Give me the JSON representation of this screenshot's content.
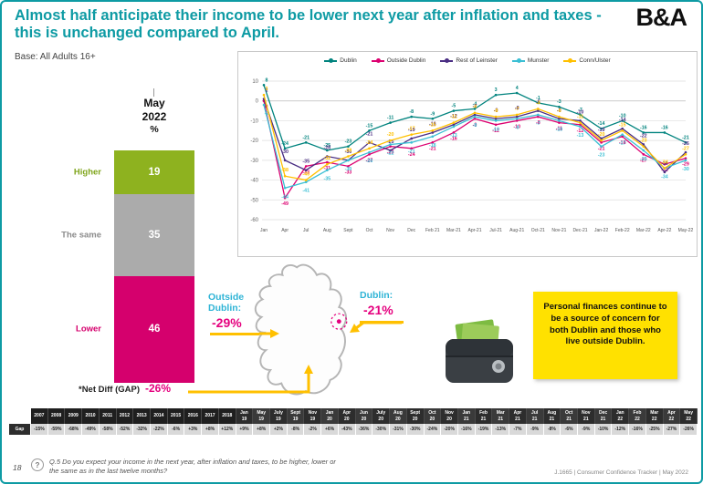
{
  "slide": {
    "title": "Almost half anticipate their income to be lower next year after inflation and taxes - this is unchanged compared to April.",
    "logo": "B&A",
    "base_note": "Base: All Adults 16+",
    "page_number": "18",
    "question": "Q.5  Do you expect your income in the next year, after inflation and taxes, to be higher, lower or the same as in the last twelve months?",
    "source": "J.1665 | Consumer Confidence Tracker | May 2022"
  },
  "colors": {
    "accent_teal": "#0E9BA4",
    "highlight_yellow": "#FFC000",
    "pink": "#E5007E",
    "cyan_label": "#2FB4D6",
    "note_yellow": "#FFE100"
  },
  "bar_panel": {
    "period_line1": "May",
    "period_line2": "2022",
    "period_line3": "%",
    "segments": [
      {
        "label": "Higher",
        "value": 19,
        "color": "#8EB21F",
        "text_color": "#7FA51B"
      },
      {
        "label": "The same",
        "value": 35,
        "color": "#ABABAB",
        "text_color": "#8C8C8C"
      },
      {
        "label": "Lower",
        "value": 46,
        "color": "#D5006D",
        "text_color": "#D5006D"
      }
    ],
    "net_diff_label": "*Net Diff (GAP)",
    "net_diff_value": "-26%"
  },
  "chart_data": {
    "type": "line",
    "title": "",
    "xlabel": "",
    "ylabel": "",
    "ylim": [
      -60,
      10
    ],
    "yticks": [
      10,
      0,
      -10,
      -20,
      -30,
      -40,
      -50,
      -60
    ],
    "grid": true,
    "legend_position": "top",
    "categories": [
      "Jan",
      "Apr",
      "Jul",
      "Aug",
      "Sept",
      "Oct",
      "Nov",
      "Dec",
      "Feb 21",
      "Mar-21",
      "Apr-21",
      "Jul-21",
      "Aug-21",
      "Oct-21",
      "Nov-21",
      "Dec-21",
      "Jan-22",
      "Feb-22",
      "Mar-22",
      "Apr-22",
      "May-22"
    ],
    "series": [
      {
        "name": "Dublin",
        "color": "#00837E",
        "values": [
          8,
          -24,
          -21,
          -25,
          -23,
          -15,
          -11,
          -8,
          -9,
          -5,
          -4,
          3,
          4,
          -1,
          -3,
          -7,
          -14,
          -10,
          -16,
          -16,
          -21
        ]
      },
      {
        "name": "Outside Dublin",
        "color": "#DC0070",
        "values": [
          0,
          -49,
          -33,
          -31,
          -33,
          -27,
          -23,
          -24,
          -21,
          -16,
          -9,
          -12,
          -10,
          -8,
          -11,
          -12,
          -21,
          -18,
          -27,
          -32,
          -29
        ]
      },
      {
        "name": "Rest of Leinster",
        "color": "#4A2E83",
        "values": [
          1,
          -30,
          -35,
          -28,
          -30,
          -21,
          -25,
          -19,
          -16,
          -12,
          -7,
          -9,
          -8,
          -5,
          -9,
          -10,
          -19,
          -14,
          -22,
          -36,
          -26
        ]
      },
      {
        "name": "Munster",
        "color": "#3BBFD4",
        "values": [
          -2,
          -44,
          -41,
          -35,
          -30,
          -26,
          -22,
          -21,
          -18,
          -13,
          -8,
          -10,
          -9,
          -7,
          -10,
          -13,
          -23,
          -17,
          -25,
          -34,
          -30
        ]
      },
      {
        "name": "Conn/Ulster",
        "color": "#FFC000",
        "values": [
          3,
          -38,
          -40,
          -32,
          -28,
          -24,
          -20,
          -17,
          -15,
          -11,
          -6,
          -8,
          -7,
          -4,
          -8,
          -11,
          -20,
          -15,
          -23,
          -34,
          -27
        ]
      }
    ]
  },
  "map_panel": {
    "outside_line1": "Outside",
    "outside_line2": "Dublin:",
    "outside_value": "-29%",
    "dublin_label": "Dublin:",
    "dublin_value": "-21%"
  },
  "callout": {
    "text": "Personal finances continue to be a source of concern for both Dublin and those who live outside Dublin."
  },
  "gap_table": {
    "row_label": "Gap",
    "columns": [
      "2007",
      "2008",
      "2009",
      "2010",
      "2011",
      "2012",
      "2013",
      "2014",
      "2015",
      "2016",
      "2017",
      "2018",
      "Jan|19",
      "May|19",
      "July|19",
      "Sept|19",
      "Nov|19",
      "Jan|20",
      "Apr|20",
      "Jun|20",
      "July|20",
      "Aug|20",
      "Sept|20",
      "Oct|20",
      "Nov|20",
      "Jan|21",
      "Feb|21",
      "Mar|21",
      "Apr|21",
      "Jul|21",
      "Aug|21",
      "Oct|21",
      "Nov|21",
      "Dec|21",
      "Jan|22",
      "Feb|22",
      "Mar|22",
      "Apr|22",
      "May|22"
    ],
    "values": [
      "-15%",
      "-59%",
      "-68%",
      "-49%",
      "-58%",
      "-52%",
      "-32%",
      "-22%",
      "-6%",
      "+3%",
      "+8%",
      "+12%",
      "+9%",
      "+8%",
      "+2%",
      "-8%",
      "-2%",
      "+6%",
      "-43%",
      "-36%",
      "-30%",
      "-31%",
      "-30%",
      "-24%",
      "-20%",
      "-16%",
      "-19%",
      "-13%",
      "-7%",
      "-9%",
      "-8%",
      "-6%",
      "-9%",
      "-10%",
      "-12%",
      "-16%",
      "-25%",
      "-27%",
      "-26%"
    ]
  }
}
